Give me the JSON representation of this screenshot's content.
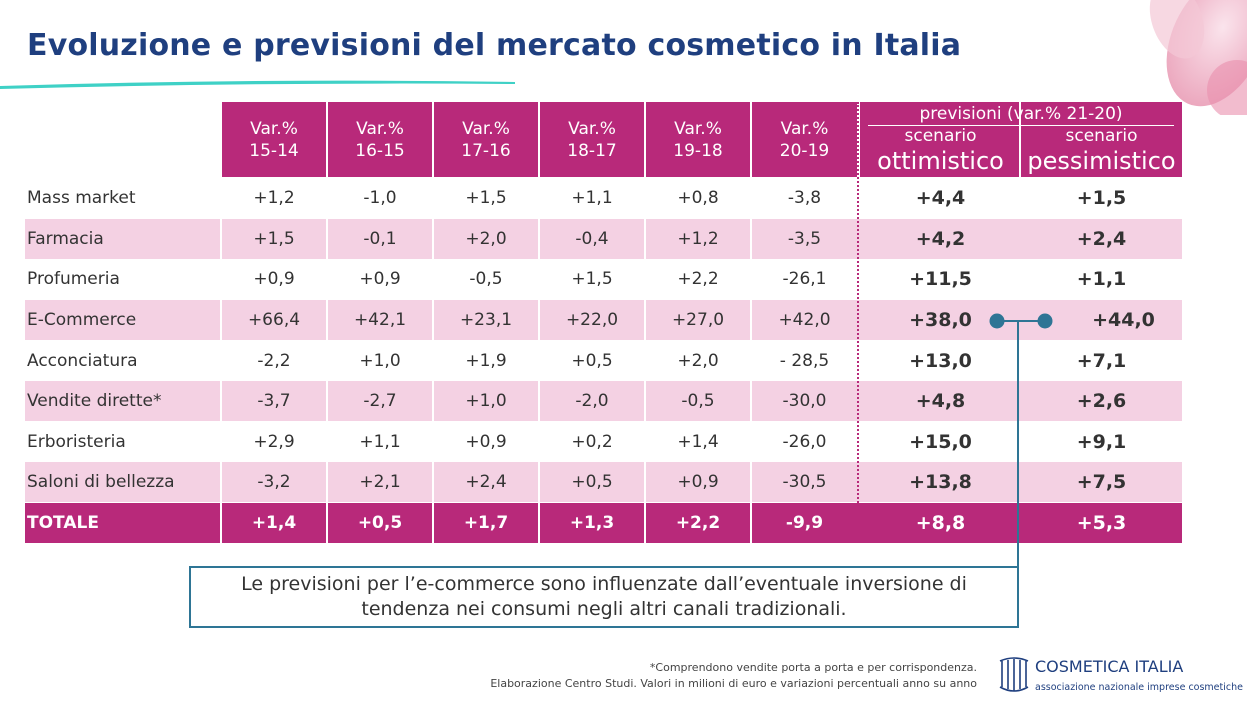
{
  "title": "Evoluzione e previsioni del mercato cosmetico in Italia",
  "columns": [
    {
      "line1": "Var.%",
      "line2": "15-14"
    },
    {
      "line1": "Var.%",
      "line2": "16-15"
    },
    {
      "line1": "Var.%",
      "line2": "17-16"
    },
    {
      "line1": "Var.%",
      "line2": "18-17"
    },
    {
      "line1": "Var.%",
      "line2": "19-18"
    },
    {
      "line1": "Var.%",
      "line2": "20-19"
    }
  ],
  "forecast": {
    "title": "previsioni (var.% 21-20)",
    "opt_line1": "scenario",
    "opt_line2": "ottimistico",
    "pes_line1": "scenario",
    "pes_line2": "pessimistico"
  },
  "rows": [
    {
      "label": "Mass market",
      "values": [
        "+1,2",
        "-1,0",
        "+1,5",
        "+1,1",
        "+0,8",
        "-3,8"
      ],
      "opt": "+4,4",
      "pes": "+1,5"
    },
    {
      "label": "Farmacia",
      "values": [
        "+1,5",
        "-0,1",
        "+2,0",
        "-0,4",
        "+1,2",
        "-3,5"
      ],
      "opt": "+4,2",
      "pes": "+2,4"
    },
    {
      "label": "Profumeria",
      "values": [
        "+0,9",
        "+0,9",
        "-0,5",
        "+1,5",
        "+2,2",
        "-26,1"
      ],
      "opt": "+11,5",
      "pes": "+1,1"
    },
    {
      "label": "E-Commerce",
      "values": [
        "+66,4",
        "+42,1",
        "+23,1",
        "+22,0",
        "+27,0",
        "+42,0"
      ],
      "opt": "+38,0",
      "pes": "+44,0"
    },
    {
      "label": "Acconciatura",
      "values": [
        "-2,2",
        "+1,0",
        "+1,9",
        "+0,5",
        "+2,0",
        "- 28,5"
      ],
      "opt": "+13,0",
      "pes": "+7,1"
    },
    {
      "label": "Vendite dirette*",
      "values": [
        "-3,7",
        "-2,7",
        "+1,0",
        "-2,0",
        "-0,5",
        "-30,0"
      ],
      "opt": "+4,8",
      "pes": "+2,6"
    },
    {
      "label": "Erboristeria",
      "values": [
        "+2,9",
        "+1,1",
        "+0,9",
        "+0,2",
        "+1,4",
        "-26,0"
      ],
      "opt": "+15,0",
      "pes": "+9,1"
    },
    {
      "label": "Saloni di bellezza",
      "values": [
        "-3,2",
        "+2,1",
        "+2,4",
        "+0,5",
        "+0,9",
        "-30,5"
      ],
      "opt": "+13,8",
      "pes": "+7,5"
    }
  ],
  "total": {
    "label": "TOTALE",
    "values": [
      "+1,4",
      "+0,5",
      "+1,7",
      "+1,3",
      "+2,2",
      "-9,9"
    ],
    "opt": "+8,8",
    "pes": "+5,3"
  },
  "note": "Le previsioni per l’e-commerce sono influenzate dall’eventuale inversione di tendenza nei consumi negli altri canali tradizionali.",
  "footnote1": "*Comprendono vendite porta a porta e per corrispondenza.",
  "footnote2": "Elaborazione Centro Studi. Valori in milioni di euro e variazioni percentuali anno su anno",
  "logo": {
    "name": "COSMETICA ITALIA",
    "subtitle": "associazione nazionale imprese cosmetiche"
  },
  "colors": {
    "accent": "#b8297a",
    "pink_row": "#f4d1e3",
    "title": "#1f3f7f",
    "teal": "#2e7595"
  }
}
